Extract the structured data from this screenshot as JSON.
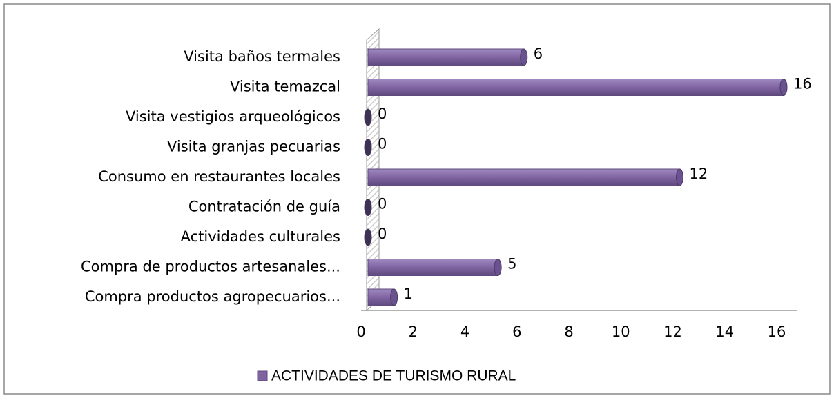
{
  "chart_data": {
    "type": "bar",
    "orientation": "horizontal",
    "categories": [
      "Visita baños termales",
      "Visita temazcal",
      "Visita vestigios arqueológicos",
      "Visita granjas pecuarias",
      "Consumo en restaurantes locales",
      "Contratación de guía",
      "Actividades culturales",
      "Compra de productos artesanales...",
      "Compra productos agropecuarios..."
    ],
    "series": [
      {
        "name": "ACTIVIDADES DE TURISMO RURAL",
        "color": "#8064a2",
        "values": [
          6,
          16,
          0,
          0,
          12,
          0,
          0,
          5,
          1
        ]
      }
    ],
    "xlim": [
      0,
      16
    ],
    "xticks": [
      0,
      2,
      4,
      6,
      8,
      10,
      12,
      14,
      16
    ],
    "legend": "bottom"
  }
}
